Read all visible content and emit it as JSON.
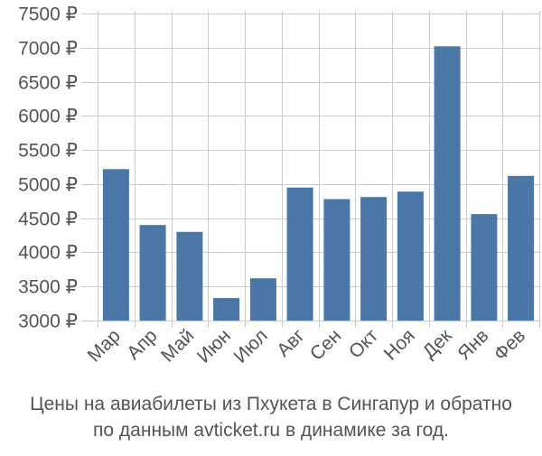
{
  "chart_data": {
    "type": "bar",
    "currency": "₽",
    "categories": [
      "Мар",
      "Апр",
      "Май",
      "Июн",
      "Июл",
      "Авг",
      "Сен",
      "Окт",
      "Ноя",
      "Дек",
      "Янв",
      "Фев"
    ],
    "values": [
      5220,
      4400,
      4300,
      3330,
      3620,
      4950,
      4780,
      4810,
      4890,
      7020,
      4560,
      5120
    ],
    "ylim": [
      3000,
      7500
    ],
    "yticks": [
      3000,
      3500,
      4000,
      4500,
      5000,
      5500,
      6000,
      6500,
      7000,
      7500
    ],
    "grid": true,
    "colors": {
      "bar": "#4a76a8",
      "grid": "#cccccc",
      "axis": "#555555"
    }
  },
  "caption": {
    "line1": "Цены на авиабилеты из Пхукета в Сингапур и обратно",
    "line2": "по данным avticket.ru в динамике за год."
  }
}
